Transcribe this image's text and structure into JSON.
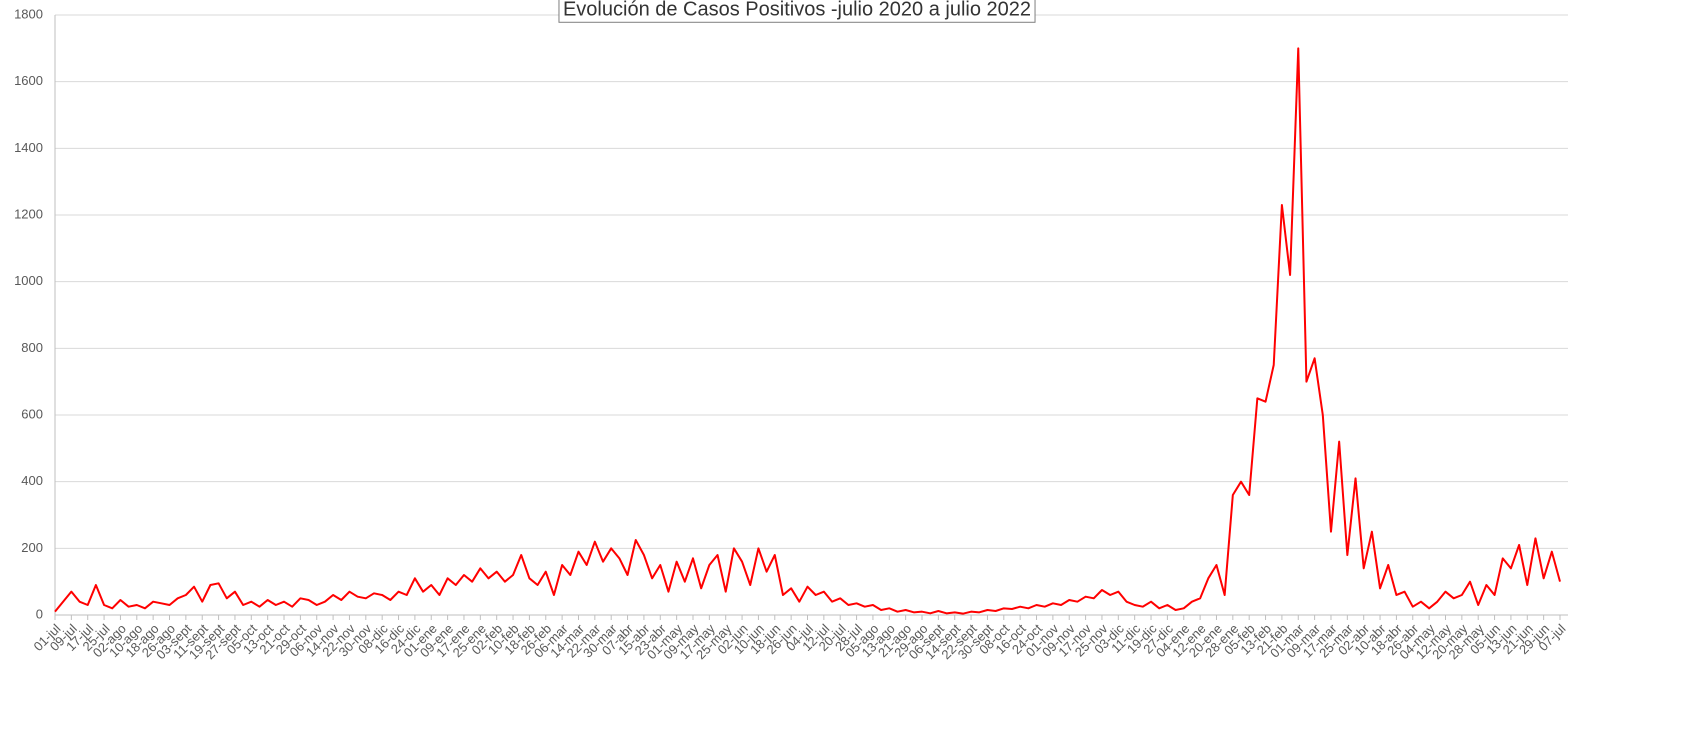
{
  "chart_data": {
    "type": "line",
    "title": "Evolución de Casos Positivos -julio 2020 a julio 2022",
    "categories": [
      "01-jul",
      null,
      "09-jul",
      null,
      "17-jul",
      null,
      "25-jul",
      null,
      "02-ago",
      null,
      "10-ago",
      null,
      "18-ago",
      null,
      "26-ago",
      null,
      "03-sept",
      null,
      "11-sept",
      null,
      "19-sept",
      null,
      "27-sept",
      null,
      "05-oct",
      null,
      "13-oct",
      null,
      "21-oct",
      null,
      "29-oct",
      null,
      "06-nov",
      null,
      "14-nov",
      null,
      "22-nov",
      null,
      "30-nov",
      null,
      "08-dic",
      null,
      "16-dic",
      null,
      "24-dic",
      null,
      "01-ene",
      null,
      "09-ene",
      null,
      "17-ene",
      null,
      "25-ene",
      null,
      "02-feb",
      null,
      "10-feb",
      null,
      "18-feb",
      null,
      "26-feb",
      null,
      "06-mar",
      null,
      "14-mar",
      null,
      "22-mar",
      null,
      "30-mar",
      null,
      "07-abr",
      null,
      "15-abr",
      null,
      "23-abr",
      null,
      "01-may",
      null,
      "09-may",
      null,
      "17-may",
      null,
      "25-may",
      null,
      "02-jun",
      null,
      "10-jun",
      null,
      "18-jun",
      null,
      "26-jun",
      null,
      "04-jul",
      null,
      "12-jul",
      null,
      "20-jul",
      null,
      "28-jul",
      null,
      "05-ago",
      null,
      "13-ago",
      null,
      "21-ago",
      null,
      "29-ago",
      null,
      "06-sept",
      null,
      "14-sept",
      null,
      "22-sept",
      null,
      "30-sept",
      null,
      "08-oct",
      null,
      "16-oct",
      null,
      "24-oct",
      null,
      "01-nov",
      null,
      "09-nov",
      null,
      "17-nov",
      null,
      "25-nov",
      null,
      "03-dic",
      null,
      "11-dic",
      null,
      "19-dic",
      null,
      "27-dic",
      null,
      "04-ene",
      null,
      "12-ene",
      null,
      "20-ene",
      null,
      "28-ene",
      null,
      "05-feb",
      null,
      "13-feb",
      null,
      "21-feb",
      null,
      "01-mar",
      null,
      "09-mar",
      null,
      "17-mar",
      null,
      "25-mar",
      null,
      "02-abr",
      null,
      "10-abr",
      null,
      "18-abr",
      null,
      "26-abr",
      null,
      "04-may",
      null,
      "12-may",
      null,
      "20-may",
      null,
      "28-may",
      null,
      "05-jun",
      null,
      "13-jun",
      null,
      "21-jun",
      null,
      "29-jun",
      null,
      "07-jul"
    ],
    "values": [
      10,
      40,
      70,
      40,
      30,
      90,
      30,
      20,
      45,
      25,
      30,
      20,
      40,
      35,
      30,
      50,
      60,
      85,
      40,
      90,
      95,
      50,
      70,
      30,
      40,
      25,
      45,
      30,
      40,
      25,
      50,
      45,
      30,
      40,
      60,
      45,
      70,
      55,
      50,
      65,
      60,
      45,
      70,
      60,
      110,
      70,
      90,
      60,
      110,
      90,
      120,
      100,
      140,
      110,
      130,
      100,
      120,
      180,
      110,
      90,
      130,
      60,
      150,
      120,
      190,
      150,
      220,
      160,
      200,
      170,
      120,
      225,
      180,
      110,
      150,
      70,
      160,
      100,
      170,
      80,
      150,
      180,
      70,
      200,
      160,
      90,
      200,
      130,
      180,
      60,
      80,
      40,
      85,
      60,
      70,
      40,
      50,
      30,
      35,
      25,
      30,
      15,
      20,
      10,
      15,
      8,
      10,
      5,
      12,
      5,
      8,
      4,
      10,
      8,
      15,
      12,
      20,
      18,
      25,
      20,
      30,
      25,
      35,
      30,
      45,
      40,
      55,
      50,
      75,
      60,
      70,
      40,
      30,
      25,
      40,
      20,
      30,
      15,
      20,
      40,
      50,
      110,
      150,
      60,
      360,
      400,
      360,
      650,
      640,
      750,
      1230,
      1020,
      1700,
      700,
      770,
      600,
      250,
      520,
      180,
      410,
      140,
      250,
      80,
      150,
      60,
      70,
      25,
      40,
      20,
      40,
      70,
      50,
      60,
      100,
      30,
      90,
      60,
      170,
      140,
      210,
      90,
      230,
      110,
      190,
      100
    ],
    "color": "#ff0000",
    "ylim": [
      0,
      1800
    ],
    "yticks": [
      0,
      200,
      400,
      600,
      800,
      1000,
      1200,
      1400,
      1600,
      1800
    ],
    "grid": true
  }
}
